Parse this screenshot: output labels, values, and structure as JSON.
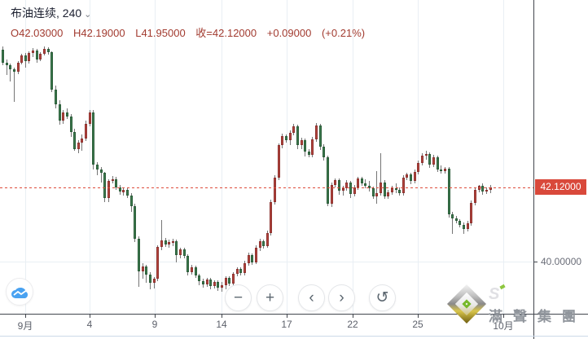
{
  "header": {
    "symbol": "布油连续",
    "separator": ", ",
    "interval": "240",
    "caret": "⌄"
  },
  "ohlc": {
    "open": "O42.03000",
    "high": "H42.19000",
    "low": "L41.95000",
    "close": "收=42.12000",
    "change": "+0.09000",
    "change_pct": "(+0.21%)"
  },
  "price_axis": {
    "last_price_label": "42.12000",
    "gridline_label": "40.00000"
  },
  "time_axis": {
    "ticks": [
      {
        "label": "9月",
        "x": 31
      },
      {
        "label": "4",
        "x": 110
      },
      {
        "label": "9",
        "x": 190
      },
      {
        "label": "14",
        "x": 272
      },
      {
        "label": "17",
        "x": 352
      },
      {
        "label": "22",
        "x": 433
      },
      {
        "label": "25",
        "x": 513
      },
      {
        "label": "10月",
        "x": 618
      }
    ]
  },
  "toolbar": {
    "zoom_out": "−",
    "zoom_in": "+",
    "scroll_left": "‹",
    "scroll_right": "›",
    "reset": "↺"
  },
  "watermark": {
    "mark": "S",
    "text": "滿聲集團"
  },
  "colors": {
    "up": "#b5443c",
    "down": "#3c7a4e",
    "accent_red": "#d9493b",
    "grid": "#e9eff4",
    "axis": "#42464e",
    "cloud_blue": "#49a2f1"
  },
  "chart_data": {
    "type": "candlestick",
    "title": "布油连续 240",
    "symbol": "布油连续",
    "interval_minutes": 240,
    "last_close": 42.12,
    "change": 0.09,
    "change_pct": 0.21,
    "ylim": [
      38.5,
      47.4
    ],
    "y_gridline": 40.0,
    "x_tick_labels": [
      "9月",
      "4",
      "9",
      "14",
      "17",
      "22",
      "25",
      "10月"
    ],
    "legend_position": "none",
    "grid": true,
    "candles_ohlc": [
      [
        46.02,
        46.12,
        45.58,
        45.65
      ],
      [
        45.65,
        45.75,
        45.31,
        45.58
      ],
      [
        45.58,
        45.63,
        45.12,
        45.47
      ],
      [
        45.47,
        45.52,
        44.54,
        45.4
      ],
      [
        45.4,
        45.7,
        45.33,
        45.65
      ],
      [
        45.65,
        45.9,
        45.6,
        45.86
      ],
      [
        45.86,
        45.93,
        45.51,
        45.7
      ],
      [
        45.7,
        45.98,
        45.63,
        45.93
      ],
      [
        45.93,
        46.07,
        45.82,
        46.0
      ],
      [
        46.0,
        46.05,
        45.65,
        45.75
      ],
      [
        45.75,
        45.95,
        45.7,
        45.91
      ],
      [
        45.91,
        46.12,
        45.86,
        46.05
      ],
      [
        46.05,
        46.09,
        45.89,
        45.95
      ],
      [
        45.95,
        45.98,
        44.82,
        44.89
      ],
      [
        44.89,
        45.0,
        44.36,
        44.47
      ],
      [
        44.47,
        44.59,
        43.9,
        44.0
      ],
      [
        44.0,
        44.3,
        43.92,
        44.24
      ],
      [
        44.24,
        44.36,
        44.05,
        44.12
      ],
      [
        44.12,
        44.19,
        43.55,
        43.68
      ],
      [
        43.68,
        43.78,
        43.15,
        43.19
      ],
      [
        43.19,
        43.45,
        43.08,
        43.38
      ],
      [
        43.38,
        43.61,
        43.15,
        43.5
      ],
      [
        43.5,
        44.0,
        43.43,
        43.92
      ],
      [
        43.92,
        44.31,
        43.85,
        44.24
      ],
      [
        44.24,
        44.31,
        42.62,
        42.75
      ],
      [
        42.75,
        42.82,
        42.46,
        42.62
      ],
      [
        42.62,
        42.68,
        42.25,
        42.53
      ],
      [
        42.53,
        42.56,
        41.69,
        41.81
      ],
      [
        41.81,
        42.34,
        41.69,
        42.29
      ],
      [
        42.29,
        42.43,
        42.22,
        42.35
      ],
      [
        42.35,
        42.4,
        42.04,
        42.11
      ],
      [
        42.11,
        42.18,
        41.9,
        41.98
      ],
      [
        41.98,
        42.08,
        41.88,
        42.04
      ],
      [
        42.04,
        42.08,
        41.81,
        41.88
      ],
      [
        41.88,
        41.95,
        41.42,
        41.57
      ],
      [
        41.57,
        41.64,
        40.55,
        40.65
      ],
      [
        40.65,
        40.72,
        39.28,
        39.72
      ],
      [
        39.72,
        39.95,
        39.51,
        39.86
      ],
      [
        39.86,
        39.92,
        39.39,
        39.63
      ],
      [
        39.63,
        39.7,
        39.21,
        39.39
      ],
      [
        39.39,
        39.56,
        39.23,
        39.51
      ],
      [
        39.51,
        40.46,
        39.44,
        40.41
      ],
      [
        40.41,
        41.18,
        40.32,
        40.6
      ],
      [
        40.6,
        40.67,
        40.41,
        40.48
      ],
      [
        40.48,
        40.62,
        40.4,
        40.55
      ],
      [
        40.55,
        40.65,
        40.44,
        40.58
      ],
      [
        40.58,
        40.62,
        39.97,
        40.18
      ],
      [
        40.18,
        40.39,
        40.09,
        40.34
      ],
      [
        40.34,
        40.39,
        40.09,
        40.16
      ],
      [
        40.16,
        40.21,
        39.6,
        39.7
      ],
      [
        39.7,
        39.91,
        39.63,
        39.84
      ],
      [
        39.84,
        39.88,
        39.53,
        39.6
      ],
      [
        39.6,
        39.65,
        39.32,
        39.44
      ],
      [
        39.44,
        39.51,
        39.26,
        39.35
      ],
      [
        39.35,
        39.53,
        39.28,
        39.49
      ],
      [
        39.49,
        39.53,
        39.21,
        39.3
      ],
      [
        39.3,
        39.46,
        39.23,
        39.42
      ],
      [
        39.42,
        39.46,
        39.16,
        39.25
      ],
      [
        39.25,
        39.42,
        39.14,
        39.32
      ],
      [
        39.32,
        39.58,
        39.21,
        39.53
      ],
      [
        39.53,
        39.58,
        39.3,
        39.37
      ],
      [
        39.37,
        39.7,
        39.32,
        39.65
      ],
      [
        39.65,
        39.84,
        39.58,
        39.79
      ],
      [
        39.79,
        39.84,
        39.6,
        39.67
      ],
      [
        39.67,
        40.02,
        39.6,
        39.95
      ],
      [
        39.95,
        40.25,
        39.88,
        40.18
      ],
      [
        40.18,
        40.23,
        39.9,
        39.98
      ],
      [
        39.98,
        40.46,
        39.93,
        40.39
      ],
      [
        40.39,
        40.65,
        40.3,
        40.58
      ],
      [
        40.58,
        40.62,
        40.37,
        40.44
      ],
      [
        40.44,
        40.88,
        40.39,
        40.81
      ],
      [
        40.81,
        41.76,
        40.74,
        41.69
      ],
      [
        41.69,
        42.46,
        41.62,
        42.39
      ],
      [
        42.39,
        43.36,
        42.32,
        43.31
      ],
      [
        43.31,
        43.64,
        43.22,
        43.57
      ],
      [
        43.57,
        43.62,
        43.38,
        43.45
      ],
      [
        43.45,
        43.73,
        43.31,
        43.66
      ],
      [
        43.66,
        43.92,
        43.59,
        43.85
      ],
      [
        43.85,
        43.9,
        43.19,
        43.31
      ],
      [
        43.31,
        43.52,
        43.19,
        43.45
      ],
      [
        43.45,
        43.5,
        42.99,
        43.12
      ],
      [
        43.12,
        43.19,
        42.96,
        43.03
      ],
      [
        43.03,
        43.54,
        42.96,
        43.47
      ],
      [
        43.47,
        43.94,
        43.4,
        43.87
      ],
      [
        43.87,
        43.92,
        43.17,
        43.26
      ],
      [
        43.26,
        43.33,
        42.87,
        42.96
      ],
      [
        42.96,
        43.01,
        41.57,
        41.64
      ],
      [
        41.64,
        42.25,
        41.55,
        42.18
      ],
      [
        42.18,
        42.36,
        42.11,
        42.32
      ],
      [
        42.32,
        42.36,
        41.9,
        42.01
      ],
      [
        42.01,
        42.15,
        41.88,
        42.08
      ],
      [
        42.08,
        42.32,
        42.01,
        42.25
      ],
      [
        42.25,
        42.29,
        41.81,
        41.92
      ],
      [
        41.92,
        42.18,
        41.85,
        42.11
      ],
      [
        42.11,
        42.41,
        42.04,
        42.36
      ],
      [
        42.36,
        42.41,
        42.15,
        42.22
      ],
      [
        42.22,
        42.34,
        42.08,
        42.15
      ],
      [
        42.15,
        42.29,
        41.99,
        42.08
      ],
      [
        42.08,
        42.13,
        41.78,
        41.85
      ],
      [
        41.85,
        42.57,
        41.64,
        41.95
      ],
      [
        41.95,
        43.08,
        41.88,
        42.25
      ],
      [
        42.25,
        42.32,
        41.78,
        41.85
      ],
      [
        41.85,
        42.04,
        41.78,
        41.97
      ],
      [
        41.97,
        42.15,
        41.9,
        42.08
      ],
      [
        42.08,
        42.22,
        41.95,
        42.04
      ],
      [
        42.04,
        42.11,
        41.88,
        41.95
      ],
      [
        41.95,
        42.46,
        41.88,
        42.39
      ],
      [
        42.39,
        42.53,
        42.32,
        42.48
      ],
      [
        42.48,
        42.53,
        42.2,
        42.29
      ],
      [
        42.29,
        42.62,
        42.22,
        42.55
      ],
      [
        42.55,
        42.87,
        42.48,
        42.8
      ],
      [
        42.8,
        43.08,
        42.73,
        43.01
      ],
      [
        43.01,
        43.15,
        42.89,
        43.06
      ],
      [
        43.06,
        43.1,
        42.66,
        42.75
      ],
      [
        42.75,
        43.03,
        42.68,
        42.96
      ],
      [
        42.96,
        43.01,
        42.55,
        42.62
      ],
      [
        42.62,
        42.73,
        42.5,
        42.57
      ],
      [
        42.57,
        42.68,
        42.5,
        42.64
      ],
      [
        42.64,
        42.68,
        41.25,
        41.34
      ],
      [
        41.34,
        41.41,
        40.78,
        41.22
      ],
      [
        41.22,
        41.29,
        41.08,
        41.15
      ],
      [
        41.15,
        41.2,
        40.97,
        41.04
      ],
      [
        41.04,
        41.11,
        40.78,
        40.92
      ],
      [
        40.92,
        41.15,
        40.85,
        41.08
      ],
      [
        41.08,
        41.74,
        41.01,
        41.67
      ],
      [
        41.67,
        42.11,
        41.6,
        42.04
      ],
      [
        42.04,
        42.19,
        41.97,
        42.15
      ],
      [
        42.15,
        42.22,
        41.9,
        41.99
      ],
      [
        41.99,
        42.1,
        41.92,
        42.03
      ],
      [
        42.03,
        42.19,
        41.95,
        42.12
      ]
    ]
  }
}
